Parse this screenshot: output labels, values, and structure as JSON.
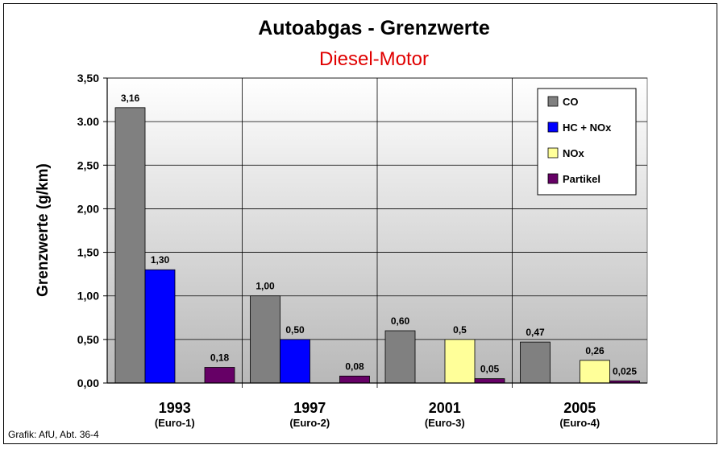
{
  "chart_data": {
    "type": "bar",
    "title": "Autoabgas - Grenzwerte",
    "subtitle": "Diesel-Motor",
    "subtitle_color": "#e00000",
    "ylabel": "Grenzwerte (g/km)",
    "ylim": [
      0,
      3.5
    ],
    "ytick_labels": [
      "0,00",
      "0,50",
      "1,00",
      "1,50",
      "2,00",
      "2,50",
      "3.00",
      "3,50"
    ],
    "categories": [
      "1993",
      "1997",
      "2001",
      "2005"
    ],
    "category_sublabels": [
      "(Euro-1)",
      "(Euro-2)",
      "(Euro-3)",
      "(Euro-4)"
    ],
    "series": [
      {
        "name": "CO",
        "color": "#808080",
        "values": [
          3.16,
          1.0,
          0.6,
          0.47
        ],
        "labels": [
          "3,16",
          "1,00",
          "0,60",
          "0,47"
        ]
      },
      {
        "name": "HC + NOx",
        "color": "#0000ff",
        "values": [
          1.3,
          0.5,
          null,
          null
        ],
        "labels": [
          "1,30",
          "0,50",
          "",
          ""
        ]
      },
      {
        "name": "NOx",
        "color": "#ffff99",
        "values": [
          null,
          null,
          0.5,
          0.26
        ],
        "labels": [
          "",
          "",
          "0,5",
          "0,26"
        ]
      },
      {
        "name": "Partikel",
        "color": "#660066",
        "values": [
          0.18,
          0.08,
          0.05,
          0.025
        ],
        "labels": [
          "0,18",
          "0,08",
          "0,05",
          "0,025"
        ]
      }
    ],
    "grid": true,
    "legend_position": "top-right",
    "plot_background": "#c0c0c0"
  },
  "source": "Grafik: AfU, Abt. 36-4"
}
